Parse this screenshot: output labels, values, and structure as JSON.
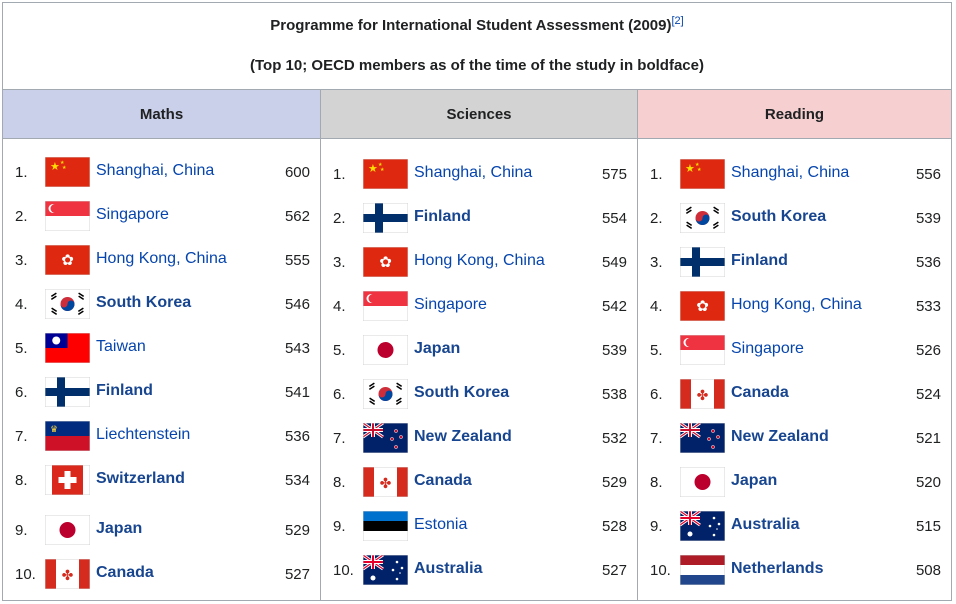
{
  "caption": {
    "title": "Programme for International Student Assessment (2009)",
    "ref": "[2]",
    "subtitle": "(Top 10; OECD members as of the time of the study in boldface)"
  },
  "columns": [
    {
      "heading": "Maths",
      "rows": [
        {
          "rank": "1.",
          "flag": "china-flag-icon",
          "name": "Shanghai, China",
          "oecd": false,
          "score": "600"
        },
        {
          "rank": "2.",
          "flag": "singapore-flag-icon",
          "name": "Singapore",
          "oecd": false,
          "score": "562"
        },
        {
          "rank": "3.",
          "flag": "hong-kong-flag-icon",
          "name": "Hong Kong, China",
          "oecd": false,
          "score": "555"
        },
        {
          "rank": "4.",
          "flag": "south-korea-flag-icon",
          "name": "South Korea",
          "oecd": true,
          "score": "546"
        },
        {
          "rank": "5.",
          "flag": "taiwan-flag-icon",
          "name": "Taiwan",
          "oecd": false,
          "score": "543"
        },
        {
          "rank": "6.",
          "flag": "finland-flag-icon",
          "name": "Finland",
          "oecd": true,
          "score": "541"
        },
        {
          "rank": "7.",
          "flag": "liechtenstein-flag-icon",
          "name": "Liechtenstein",
          "oecd": false,
          "score": "536"
        },
        {
          "rank": "8.",
          "flag": "switzerland-flag-icon",
          "name": "Switzerland",
          "oecd": true,
          "score": "534"
        },
        {
          "rank": "9.",
          "flag": "japan-flag-icon",
          "name": "Japan",
          "oecd": true,
          "score": "529"
        },
        {
          "rank": "10.",
          "flag": "canada-flag-icon",
          "name": "Canada",
          "oecd": true,
          "score": "527"
        }
      ]
    },
    {
      "heading": "Sciences",
      "rows": [
        {
          "rank": "1.",
          "flag": "china-flag-icon",
          "name": "Shanghai, China",
          "oecd": false,
          "score": "575"
        },
        {
          "rank": "2.",
          "flag": "finland-flag-icon",
          "name": "Finland",
          "oecd": true,
          "score": "554"
        },
        {
          "rank": "3.",
          "flag": "hong-kong-flag-icon",
          "name": "Hong Kong, China",
          "oecd": false,
          "score": "549"
        },
        {
          "rank": "4.",
          "flag": "singapore-flag-icon",
          "name": "Singapore",
          "oecd": false,
          "score": "542"
        },
        {
          "rank": "5.",
          "flag": "japan-flag-icon",
          "name": "Japan",
          "oecd": true,
          "score": "539"
        },
        {
          "rank": "6.",
          "flag": "south-korea-flag-icon",
          "name": "South Korea",
          "oecd": true,
          "score": "538"
        },
        {
          "rank": "7.",
          "flag": "new-zealand-flag-icon",
          "name": "New Zealand",
          "oecd": true,
          "score": "532"
        },
        {
          "rank": "8.",
          "flag": "canada-flag-icon",
          "name": "Canada",
          "oecd": true,
          "score": "529"
        },
        {
          "rank": "9.",
          "flag": "estonia-flag-icon",
          "name": "Estonia",
          "oecd": false,
          "score": "528"
        },
        {
          "rank": "10.",
          "flag": "australia-flag-icon",
          "name": "Australia",
          "oecd": true,
          "score": "527"
        }
      ]
    },
    {
      "heading": "Reading",
      "rows": [
        {
          "rank": "1.",
          "flag": "china-flag-icon",
          "name": "Shanghai, China",
          "oecd": false,
          "score": "556"
        },
        {
          "rank": "2.",
          "flag": "south-korea-flag-icon",
          "name": "South Korea",
          "oecd": true,
          "score": "539"
        },
        {
          "rank": "3.",
          "flag": "finland-flag-icon",
          "name": "Finland",
          "oecd": true,
          "score": "536"
        },
        {
          "rank": "4.",
          "flag": "hong-kong-flag-icon",
          "name": "Hong Kong, China",
          "oecd": false,
          "score": "533"
        },
        {
          "rank": "5.",
          "flag": "singapore-flag-icon",
          "name": "Singapore",
          "oecd": false,
          "score": "526"
        },
        {
          "rank": "6.",
          "flag": "canada-flag-icon",
          "name": "Canada",
          "oecd": true,
          "score": "524"
        },
        {
          "rank": "7.",
          "flag": "new-zealand-flag-icon",
          "name": "New Zealand",
          "oecd": true,
          "score": "521"
        },
        {
          "rank": "8.",
          "flag": "japan-flag-icon",
          "name": "Japan",
          "oecd": true,
          "score": "520"
        },
        {
          "rank": "9.",
          "flag": "australia-flag-icon",
          "name": "Australia",
          "oecd": true,
          "score": "515"
        },
        {
          "rank": "10.",
          "flag": "netherlands-flag-icon",
          "name": "Netherlands",
          "oecd": true,
          "score": "508"
        }
      ]
    }
  ]
}
